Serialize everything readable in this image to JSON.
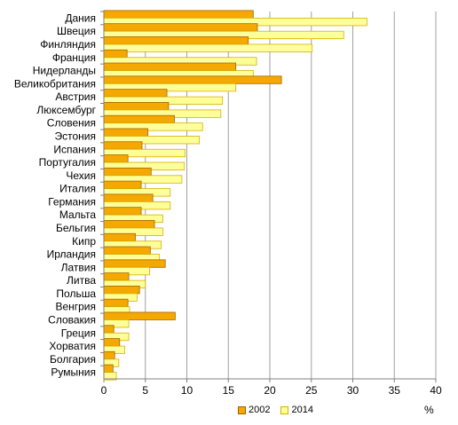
{
  "chart_data": {
    "type": "bar",
    "orientation": "horizontal",
    "categories": [
      "Дания",
      "Швеция",
      "Финляндия",
      "Франция",
      "Нидерланды",
      "Великобритания",
      "Австрия",
      "Люксембург",
      "Словения",
      "Эстония",
      "Испания",
      "Португалия",
      "Чехия",
      "Италия",
      "Германия",
      "Мальта",
      "Бельгия",
      "Кипр",
      "Ирландия",
      "Латвия",
      "Литва",
      "Польша",
      "Венгрия",
      "Словакия",
      "Греция",
      "Хорватия",
      "Болгария",
      "Румыния"
    ],
    "series": [
      {
        "name": "2002",
        "color": "#f5a800",
        "border": "#a86600",
        "values": [
          18.0,
          18.5,
          17.4,
          2.8,
          15.9,
          21.4,
          7.6,
          7.8,
          8.5,
          5.3,
          4.6,
          2.9,
          5.7,
          4.5,
          5.9,
          4.5,
          6.1,
          3.8,
          5.6,
          7.4,
          3.0,
          4.3,
          2.9,
          8.6,
          1.2,
          1.9,
          1.3,
          1.1
        ]
      },
      {
        "name": "2014",
        "color": "#ffff99",
        "border": "#d4b000",
        "values": [
          31.7,
          28.9,
          25.1,
          18.4,
          18.0,
          15.9,
          14.3,
          14.1,
          11.9,
          11.5,
          9.8,
          9.7,
          9.4,
          8.0,
          8.0,
          7.1,
          7.1,
          6.9,
          6.7,
          5.5,
          5.0,
          4.0,
          3.1,
          3.0,
          3.0,
          2.5,
          1.8,
          1.5
        ]
      }
    ],
    "x_ticks": [
      "0",
      "5",
      "10",
      "15",
      "20",
      "25",
      "30",
      "35",
      "40"
    ],
    "xlim": [
      0,
      40
    ],
    "x_unit": "%",
    "grid": true,
    "legend_position": "bottom"
  }
}
